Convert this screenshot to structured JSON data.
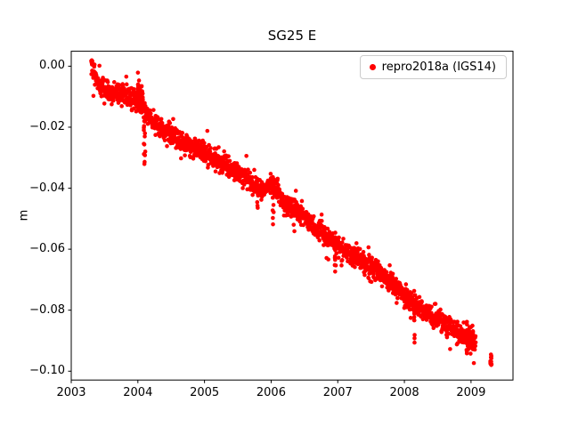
{
  "figure": {
    "background": "#ffffff"
  },
  "chart_data": {
    "type": "scatter",
    "title": "SG25 E",
    "xlabel": "",
    "ylabel": "m",
    "xlim": [
      2003.0,
      2009.63
    ],
    "ylim": [
      -0.1029,
      0.0049
    ],
    "grid": false,
    "xticks": [
      {
        "label": "2003",
        "value": 2003
      },
      {
        "label": "2004",
        "value": 2004
      },
      {
        "label": "2005",
        "value": 2005
      },
      {
        "label": "2006",
        "value": 2006
      },
      {
        "label": "2007",
        "value": 2007
      },
      {
        "label": "2008",
        "value": 2008
      },
      {
        "label": "2009",
        "value": 2009
      }
    ],
    "yticks": [
      {
        "label": "0.00",
        "value": 0.0
      },
      {
        "label": "−0.02",
        "value": -0.02
      },
      {
        "label": "−0.04",
        "value": -0.04
      },
      {
        "label": "−0.06",
        "value": -0.06
      },
      {
        "label": "−0.08",
        "value": -0.08
      },
      {
        "label": "−0.10",
        "value": -0.1
      }
    ],
    "legend": {
      "position": "upper right",
      "label": "repro2018a (IGS14)",
      "marker": "circle",
      "color": "#ff0000"
    },
    "seed": 42,
    "series": [
      {
        "name": "repro2018a (IGS14)",
        "color": "#ff0000",
        "marker_radius_px": 2.3,
        "samples_per_year": 365,
        "x_start": 2003.3,
        "x_end": 2009.07,
        "noise_std": 0.0016,
        "trend_anchors": [
          [
            2003.3,
            0.0005
          ],
          [
            2003.36,
            -0.0035
          ],
          [
            2003.45,
            -0.007
          ],
          [
            2003.6,
            -0.0088
          ],
          [
            2003.8,
            -0.0095
          ],
          [
            2003.95,
            -0.0105
          ],
          [
            2004.05,
            -0.0125
          ],
          [
            2004.18,
            -0.017
          ],
          [
            2004.3,
            -0.0195
          ],
          [
            2004.5,
            -0.0225
          ],
          [
            2004.7,
            -0.0258
          ],
          [
            2004.9,
            -0.0272
          ],
          [
            2005.0,
            -0.0282
          ],
          [
            2005.2,
            -0.031
          ],
          [
            2005.4,
            -0.0338
          ],
          [
            2005.6,
            -0.0362
          ],
          [
            2005.75,
            -0.0395
          ],
          [
            2005.88,
            -0.0408
          ],
          [
            2005.97,
            -0.0382
          ],
          [
            2006.08,
            -0.0405
          ],
          [
            2006.2,
            -0.0448
          ],
          [
            2006.4,
            -0.0478
          ],
          [
            2006.6,
            -0.0512
          ],
          [
            2006.8,
            -0.0552
          ],
          [
            2007.0,
            -0.0588
          ],
          [
            2007.2,
            -0.0618
          ],
          [
            2007.4,
            -0.0642
          ],
          [
            2007.6,
            -0.0675
          ],
          [
            2007.8,
            -0.071
          ],
          [
            2008.0,
            -0.0752
          ],
          [
            2008.2,
            -0.0788
          ],
          [
            2008.4,
            -0.0818
          ],
          [
            2008.6,
            -0.0838
          ],
          [
            2008.8,
            -0.0872
          ],
          [
            2008.95,
            -0.0888
          ],
          [
            2009.07,
            -0.09
          ],
          [
            2009.3,
            -0.0968
          ]
        ],
        "dense_clusters": [
          {
            "x": 2004.03,
            "sx": 0.045,
            "y": -0.011,
            "sy": 0.0032,
            "n": 70
          },
          {
            "x": 2008.98,
            "sx": 0.05,
            "y": -0.0895,
            "sy": 0.0022,
            "n": 50
          },
          {
            "x": 2009.3,
            "sx": 0.01,
            "y": -0.0968,
            "sy": 0.0011,
            "n": 12
          }
        ],
        "outlier_streaks": [
          {
            "x": 2004.1,
            "sx": 0.012,
            "y1": -0.015,
            "y2": -0.033,
            "n": 14
          },
          {
            "x": 2005.8,
            "sx": 0.01,
            "y1": -0.04,
            "y2": -0.047,
            "n": 6
          },
          {
            "x": 2006.03,
            "sx": 0.008,
            "y1": -0.043,
            "y2": -0.053,
            "n": 7
          },
          {
            "x": 2006.96,
            "sx": 0.012,
            "y1": -0.059,
            "y2": -0.0675,
            "n": 9
          },
          {
            "x": 2007.06,
            "sx": 0.008,
            "y1": -0.059,
            "y2": -0.066,
            "n": 5
          },
          {
            "x": 2008.15,
            "sx": 0.008,
            "y1": -0.079,
            "y2": -0.091,
            "n": 11
          }
        ],
        "gaps": [
          [
            2009.07,
            2009.27
          ]
        ]
      }
    ]
  }
}
